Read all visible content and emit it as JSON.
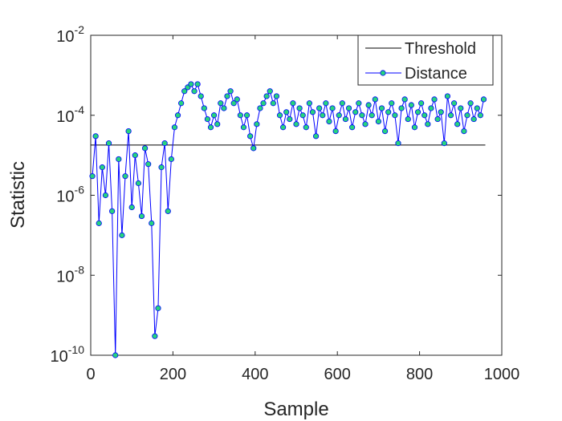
{
  "chart_data": {
    "type": "line",
    "xlabel": "Sample",
    "ylabel": "Statistic",
    "xlim": [
      0,
      1000
    ],
    "xticks": [
      0,
      200,
      400,
      600,
      800,
      1000
    ],
    "ylim": [
      1e-10,
      0.01
    ],
    "yscale": "log",
    "yticks": [
      {
        "value": 1e-10,
        "label": "10",
        "sup": "-10"
      },
      {
        "value": 1e-08,
        "label": "10",
        "sup": "-8"
      },
      {
        "value": 1e-06,
        "label": "10",
        "sup": "-6"
      },
      {
        "value": 0.0001,
        "label": "10",
        "sup": "-4"
      },
      {
        "value": 0.01,
        "label": "10",
        "sup": "-2"
      }
    ],
    "legend": "top-right",
    "series": [
      {
        "name": "Threshold",
        "color": "#000000",
        "x": [
          0,
          960
        ],
        "values": [
          1.8e-05,
          1.8e-05
        ]
      },
      {
        "name": "Distance",
        "color": "#0000ff",
        "marker_color": "#26d47e",
        "x": [
          4,
          12,
          20,
          28,
          36,
          44,
          52,
          60,
          68,
          76,
          84,
          92,
          100,
          108,
          116,
          124,
          132,
          140,
          148,
          156,
          164,
          172,
          180,
          188,
          196,
          204,
          212,
          220,
          228,
          236,
          244,
          252,
          260,
          268,
          276,
          284,
          292,
          300,
          308,
          316,
          324,
          332,
          340,
          348,
          356,
          364,
          372,
          380,
          388,
          396,
          404,
          412,
          420,
          428,
          436,
          444,
          452,
          460,
          468,
          476,
          484,
          492,
          500,
          508,
          516,
          524,
          532,
          540,
          548,
          556,
          564,
          572,
          580,
          588,
          596,
          604,
          612,
          620,
          628,
          636,
          644,
          652,
          660,
          668,
          676,
          684,
          692,
          700,
          708,
          716,
          724,
          732,
          740,
          748,
          756,
          764,
          772,
          780,
          788,
          796,
          804,
          812,
          820,
          828,
          836,
          844,
          852,
          860,
          868,
          876,
          884,
          892,
          900,
          908,
          916,
          924,
          932,
          940,
          948,
          956
        ],
        "values": [
          3e-06,
          3e-05,
          2e-07,
          5e-06,
          1e-06,
          2e-05,
          4e-07,
          1e-10,
          8e-06,
          1e-07,
          3e-06,
          4e-05,
          5e-07,
          1e-05,
          2e-06,
          3e-07,
          1.5e-05,
          6e-06,
          2e-07,
          3e-10,
          1.5e-09,
          5e-06,
          2e-05,
          4e-07,
          8e-06,
          5e-05,
          0.0001,
          0.0002,
          0.0004,
          0.0005,
          0.0006,
          0.0004,
          0.0006,
          0.0003,
          0.00015,
          8e-05,
          5e-05,
          0.0001,
          6e-05,
          0.0002,
          0.00015,
          0.0003,
          0.0004,
          0.0002,
          0.00025,
          0.0001,
          5e-05,
          0.0001,
          3e-05,
          1.5e-05,
          6e-05,
          0.00015,
          0.0002,
          0.0003,
          0.0004,
          0.0002,
          0.0003,
          0.0001,
          5e-05,
          0.00012,
          8e-05,
          0.0002,
          6e-05,
          0.00015,
          0.0001,
          5e-05,
          0.0002,
          0.00012,
          3e-05,
          0.00015,
          0.0001,
          0.0002,
          7e-05,
          0.00015,
          4e-05,
          0.0001,
          0.0002,
          8e-05,
          0.00015,
          5e-05,
          0.00012,
          0.0002,
          0.0001,
          6e-05,
          0.00018,
          0.0001,
          0.00025,
          7e-05,
          0.00015,
          4e-05,
          0.00012,
          0.0002,
          0.0001,
          2e-05,
          0.00015,
          0.00025,
          8e-05,
          0.00018,
          5e-05,
          0.00012,
          0.0002,
          0.0001,
          6e-05,
          0.00015,
          0.00025,
          8e-05,
          0.00012,
          2e-05,
          0.0003,
          0.0001,
          0.0002,
          6e-05,
          0.00015,
          4e-05,
          0.0001,
          0.0002,
          8e-05,
          0.00015,
          0.0001,
          0.00025
        ]
      }
    ]
  }
}
